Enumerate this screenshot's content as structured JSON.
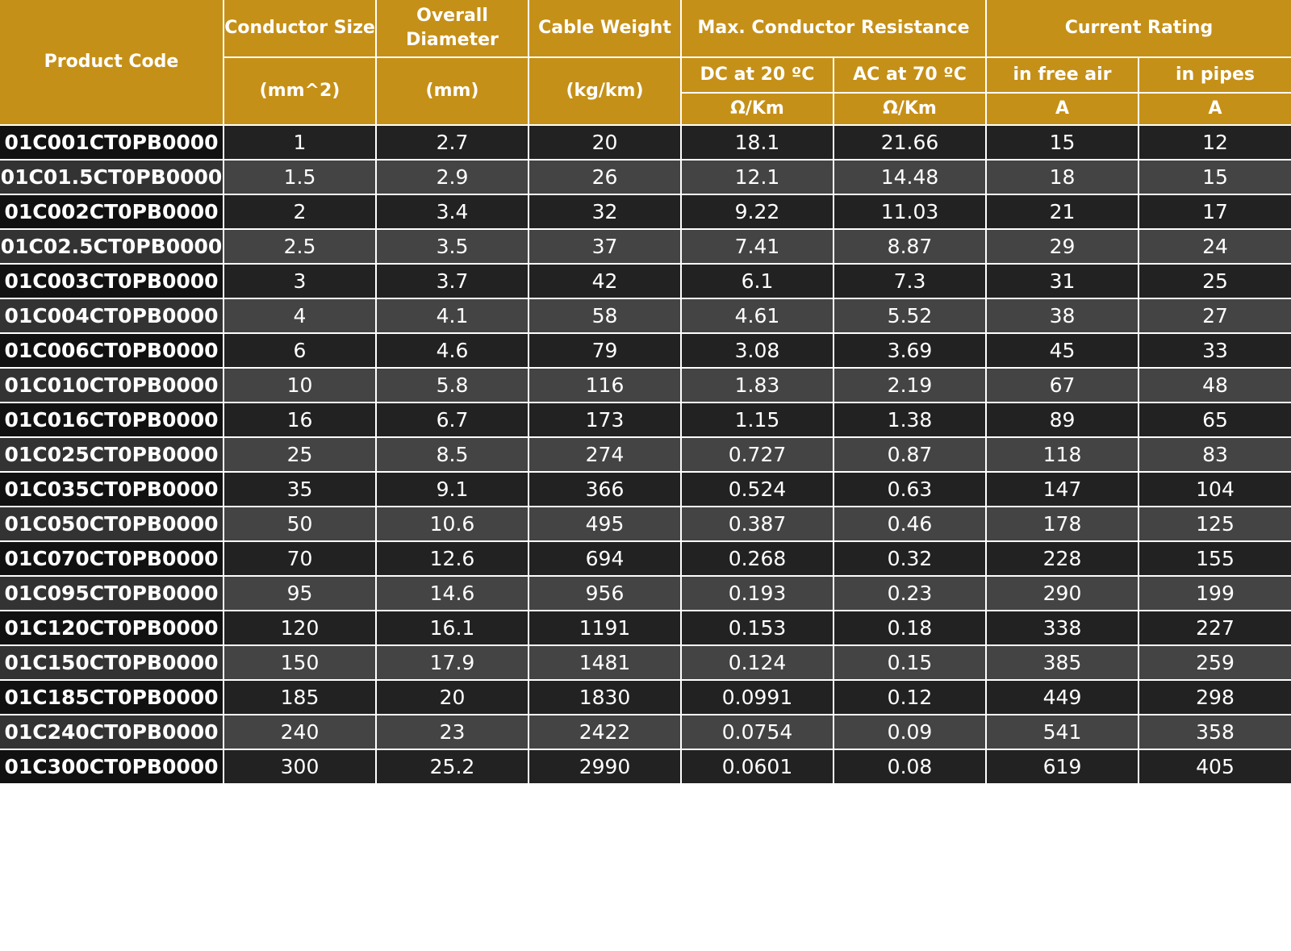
{
  "colors": {
    "header_bg": "#c59018",
    "row_dark": "#222222",
    "row_light": "#444444",
    "text": "#ffffff"
  },
  "header": {
    "product_code": "Product Code",
    "conductor_size": "Conductor Size",
    "conductor_size_unit": "(mm^2)",
    "overall_diameter": "Overall Diameter",
    "overall_diameter_unit": "(mm)",
    "cable_weight": "Cable Weight",
    "cable_weight_unit": "(kg/km)",
    "max_resistance": "Max. Conductor Resistance",
    "dc": "DC at 20 ºC",
    "dc_unit": "Ω/Km",
    "ac": "AC at 70 ºC",
    "ac_unit": "Ω/Km",
    "current_rating": "Current Rating",
    "free_air": "in free air",
    "free_air_unit": "A",
    "pipes": "in pipes",
    "pipes_unit": "A"
  },
  "rows": [
    {
      "code": "01C001CT0PB0000",
      "size": "1",
      "diameter": "2.7",
      "weight": "20",
      "dc": "18.1",
      "ac": "21.66",
      "air": "15",
      "pipes": "12"
    },
    {
      "code": "01C01.5CT0PB0000",
      "size": "1.5",
      "diameter": "2.9",
      "weight": "26",
      "dc": "12.1",
      "ac": "14.48",
      "air": "18",
      "pipes": "15"
    },
    {
      "code": "01C002CT0PB0000",
      "size": "2",
      "diameter": "3.4",
      "weight": "32",
      "dc": "9.22",
      "ac": "11.03",
      "air": "21",
      "pipes": "17"
    },
    {
      "code": "01C02.5CT0PB0000",
      "size": "2.5",
      "diameter": "3.5",
      "weight": "37",
      "dc": "7.41",
      "ac": "8.87",
      "air": "29",
      "pipes": "24"
    },
    {
      "code": "01C003CT0PB0000",
      "size": "3",
      "diameter": "3.7",
      "weight": "42",
      "dc": "6.1",
      "ac": "7.3",
      "air": "31",
      "pipes": "25"
    },
    {
      "code": "01C004CT0PB0000",
      "size": "4",
      "diameter": "4.1",
      "weight": "58",
      "dc": "4.61",
      "ac": "5.52",
      "air": "38",
      "pipes": "27"
    },
    {
      "code": "01C006CT0PB0000",
      "size": "6",
      "diameter": "4.6",
      "weight": "79",
      "dc": "3.08",
      "ac": "3.69",
      "air": "45",
      "pipes": "33"
    },
    {
      "code": "01C010CT0PB0000",
      "size": "10",
      "diameter": "5.8",
      "weight": "116",
      "dc": "1.83",
      "ac": "2.19",
      "air": "67",
      "pipes": "48"
    },
    {
      "code": "01C016CT0PB0000",
      "size": "16",
      "diameter": "6.7",
      "weight": "173",
      "dc": "1.15",
      "ac": "1.38",
      "air": "89",
      "pipes": "65"
    },
    {
      "code": "01C025CT0PB0000",
      "size": "25",
      "diameter": "8.5",
      "weight": "274",
      "dc": "0.727",
      "ac": "0.87",
      "air": "118",
      "pipes": "83"
    },
    {
      "code": "01C035CT0PB0000",
      "size": "35",
      "diameter": "9.1",
      "weight": "366",
      "dc": "0.524",
      "ac": "0.63",
      "air": "147",
      "pipes": "104"
    },
    {
      "code": "01C050CT0PB0000",
      "size": "50",
      "diameter": "10.6",
      "weight": "495",
      "dc": "0.387",
      "ac": "0.46",
      "air": "178",
      "pipes": "125"
    },
    {
      "code": "01C070CT0PB0000",
      "size": "70",
      "diameter": "12.6",
      "weight": "694",
      "dc": "0.268",
      "ac": "0.32",
      "air": "228",
      "pipes": "155"
    },
    {
      "code": "01C095CT0PB0000",
      "size": "95",
      "diameter": "14.6",
      "weight": "956",
      "dc": "0.193",
      "ac": "0.23",
      "air": "290",
      "pipes": "199"
    },
    {
      "code": "01C120CT0PB0000",
      "size": "120",
      "diameter": "16.1",
      "weight": "1191",
      "dc": "0.153",
      "ac": "0.18",
      "air": "338",
      "pipes": "227"
    },
    {
      "code": "01C150CT0PB0000",
      "size": "150",
      "diameter": "17.9",
      "weight": "1481",
      "dc": "0.124",
      "ac": "0.15",
      "air": "385",
      "pipes": "259"
    },
    {
      "code": "01C185CT0PB0000",
      "size": "185",
      "diameter": "20",
      "weight": "1830",
      "dc": "0.0991",
      "ac": "0.12",
      "air": "449",
      "pipes": "298"
    },
    {
      "code": "01C240CT0PB0000",
      "size": "240",
      "diameter": "23",
      "weight": "2422",
      "dc": "0.0754",
      "ac": "0.09",
      "air": "541",
      "pipes": "358"
    },
    {
      "code": "01C300CT0PB0000",
      "size": "300",
      "diameter": "25.2",
      "weight": "2990",
      "dc": "0.0601",
      "ac": "0.08",
      "air": "619",
      "pipes": "405"
    }
  ]
}
